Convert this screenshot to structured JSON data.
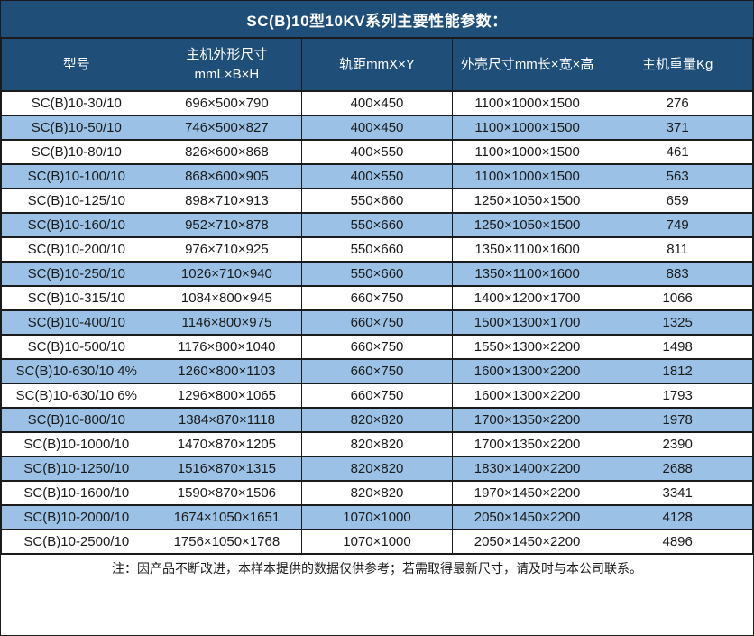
{
  "chart_data": {
    "type": "table",
    "title": "SC(B)10型10KV系列主要性能参数：",
    "columns": [
      [
        "型号"
      ],
      [
        "主机外形尺寸",
        "mmL×B×H"
      ],
      [
        "轨距mmX×Y"
      ],
      [
        "外壳尺寸mm长×宽×高"
      ],
      [
        "主机重量Kg"
      ]
    ],
    "rows": [
      [
        "SC(B)10-30/10",
        "696×500×790",
        "400×450",
        "1100×1000×1500",
        "276"
      ],
      [
        "SC(B)10-50/10",
        "746×500×827",
        "400×450",
        "1100×1000×1500",
        "371"
      ],
      [
        "SC(B)10-80/10",
        "826×600×868",
        "400×550",
        "1100×1000×1500",
        "461"
      ],
      [
        "SC(B)10-100/10",
        "868×600×905",
        "400×550",
        "1100×1000×1500",
        "563"
      ],
      [
        "SC(B)10-125/10",
        "898×710×913",
        "550×660",
        "1250×1050×1500",
        "659"
      ],
      [
        "SC(B)10-160/10",
        "952×710×878",
        "550×660",
        "1250×1050×1500",
        "749"
      ],
      [
        "SC(B)10-200/10",
        "976×710×925",
        "550×660",
        "1350×1100×1600",
        "811"
      ],
      [
        "SC(B)10-250/10",
        "1026×710×940",
        "550×660",
        "1350×1100×1600",
        "883"
      ],
      [
        "SC(B)10-315/10",
        "1084×800×945",
        "660×750",
        "1400×1200×1700",
        "1066"
      ],
      [
        "SC(B)10-400/10",
        "1146×800×975",
        "660×750",
        "1500×1300×1700",
        "1325"
      ],
      [
        "SC(B)10-500/10",
        "1176×800×1040",
        "660×750",
        "1550×1300×2200",
        "1498"
      ],
      [
        "SC(B)10-630/10 4%",
        "1260×800×1103",
        "660×750",
        "1600×1300×2200",
        "1812"
      ],
      [
        "SC(B)10-630/10 6%",
        "1296×800×1065",
        "660×750",
        "1600×1300×2200",
        "1793"
      ],
      [
        "SC(B)10-800/10",
        "1384×870×1118",
        "820×820",
        "1700×1350×2200",
        "1978"
      ],
      [
        "SC(B)10-1000/10",
        "1470×870×1205",
        "820×820",
        "1700×1350×2200",
        "2390"
      ],
      [
        "SC(B)10-1250/10",
        "1516×870×1315",
        "820×820",
        "1830×1400×2200",
        "2688"
      ],
      [
        "SC(B)10-1600/10",
        "1590×870×1506",
        "820×820",
        "1970×1450×2200",
        "3341"
      ],
      [
        "SC(B)10-2000/10",
        "1674×1050×1651",
        "1070×1000",
        "2050×1450×2200",
        "4128"
      ],
      [
        "SC(B)10-2500/10",
        "1756×1050×1768",
        "1070×1000",
        "2050×1450×2200",
        "4896"
      ]
    ],
    "note": "注：因产品不断改进，本样本提供的数据仅供参考；若需取得最新尺寸，请及时与本公司联系。",
    "layout_hints": {
      "grid": "on",
      "row_striping": "white / light-blue alternating",
      "all_cells_centered": true
    }
  },
  "colors": {
    "header_bg": "#1F4E79",
    "alt_row_bg": "#9BC2E6",
    "border": "#1B1B1B",
    "text": "#1A1A1A",
    "header_text": "#FFFFFF"
  }
}
